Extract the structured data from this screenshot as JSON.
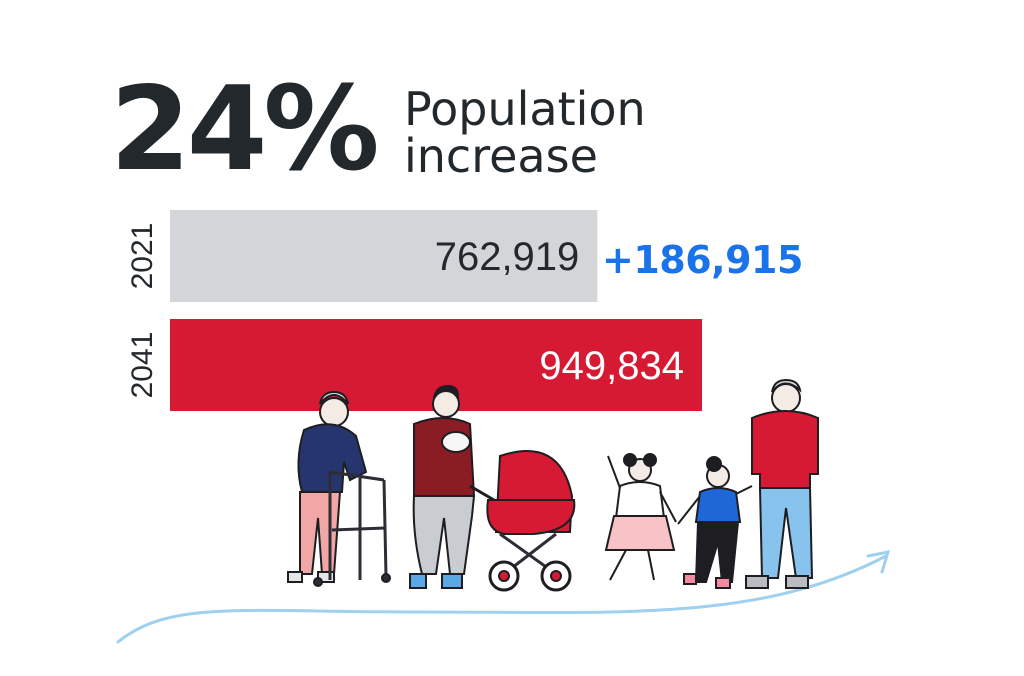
{
  "headline": {
    "percent": "24%",
    "label_line1": "Population",
    "label_line2": "increase"
  },
  "delta": "+186,915",
  "colors": {
    "bar_2021": "#d3d5d8",
    "bar_2041": "#d71a34",
    "delta_text": "#1a73e8",
    "text_dark": "#23282d",
    "arrow": "#9fd0ef"
  },
  "illustration": {
    "subject": "family-group",
    "figures": [
      "elderly-woman-with-walker",
      "man-holding-baby",
      "red-pram",
      "girl-in-skirt",
      "girl-in-blue-top",
      "man-in-red-sweater"
    ]
  },
  "chart_data": {
    "type": "bar",
    "orientation": "horizontal",
    "categories": [
      "2021",
      "2041"
    ],
    "values": [
      762919,
      949834
    ],
    "value_labels": [
      "762,919",
      "949,834"
    ],
    "xlim": [
      0,
      1100000
    ],
    "grid": false,
    "title": "",
    "xlabel": "",
    "ylabel": ""
  }
}
